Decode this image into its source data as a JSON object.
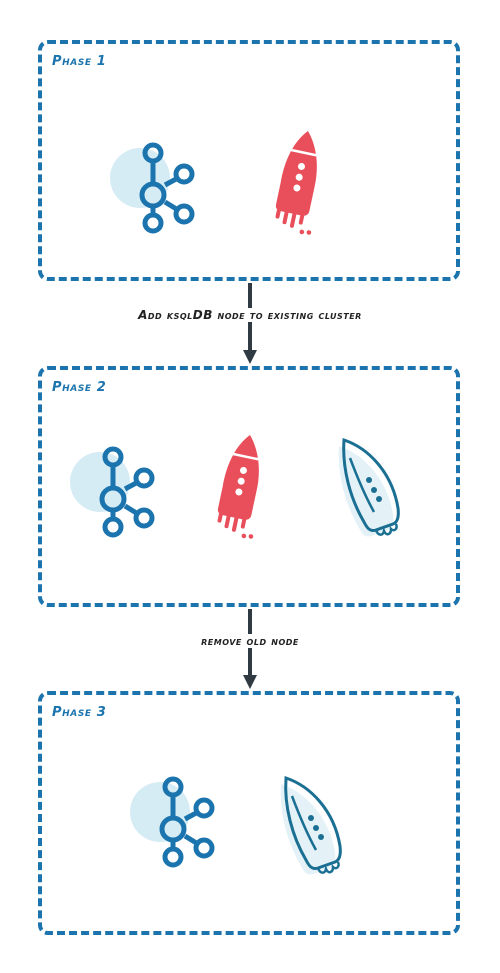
{
  "phases": [
    {
      "label": "Phase 1"
    },
    {
      "label": "Phase 2"
    },
    {
      "label": "Phase 3"
    }
  ],
  "steps": [
    {
      "label": "Add ksqlDB node to existing cluster"
    },
    {
      "label": "remove old node"
    }
  ],
  "colors": {
    "border": "#1b74ad",
    "kafka_icon": "#1b74ad",
    "kafka_halo": "#d6ecf5",
    "red_rocket": "#e94f5b",
    "new_rocket_outline": "#1b6f93",
    "new_rocket_fill": "#dff0f7",
    "arrow": "#2f3a42"
  },
  "icons": {
    "cluster": "kafka-cluster-icon",
    "old_node": "red-rocket-icon",
    "new_node": "outline-rocket-icon"
  }
}
